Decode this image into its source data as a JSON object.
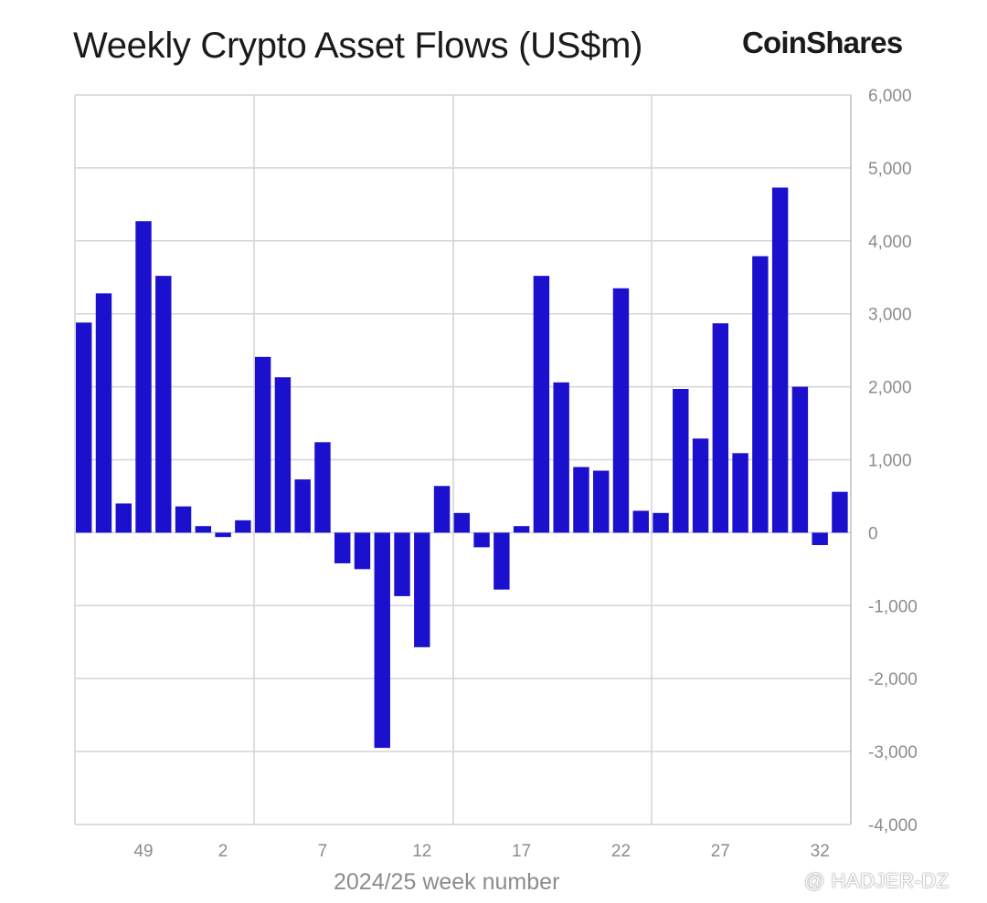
{
  "title": "Weekly Crypto Asset Flows (US$m)",
  "brand": "CoinShares",
  "watermark": "@ HADJER-DZ",
  "chart_data": {
    "type": "bar",
    "xlabel": "2024/25 week number",
    "ylabel": "",
    "ylim": [
      -4000,
      6000
    ],
    "y_ticks": [
      6000,
      5000,
      4000,
      3000,
      2000,
      1000,
      0,
      -1000,
      -2000,
      -3000,
      -4000
    ],
    "y_tick_labels": [
      "6,000",
      "5,000",
      "4,000",
      "3,000",
      "2,000",
      "1,000",
      "0",
      "-1,000",
      "-2,000",
      "-3,000",
      "-4,000"
    ],
    "x_tick_labels": [
      "49",
      "2",
      "7",
      "12",
      "17",
      "22",
      "27",
      "32"
    ],
    "axis_position": "right",
    "grid": true,
    "bar_color": "#1c10cf",
    "values": [
      2880,
      3280,
      400,
      4270,
      3520,
      360,
      90,
      -60,
      170,
      2410,
      2130,
      730,
      1240,
      -420,
      -500,
      -2950,
      -870,
      -1570,
      640,
      270,
      -200,
      -780,
      90,
      3520,
      2060,
      900,
      850,
      3350,
      300,
      270,
      1970,
      1290,
      2870,
      1090,
      3790,
      4730,
      2000,
      -170,
      560
    ]
  }
}
